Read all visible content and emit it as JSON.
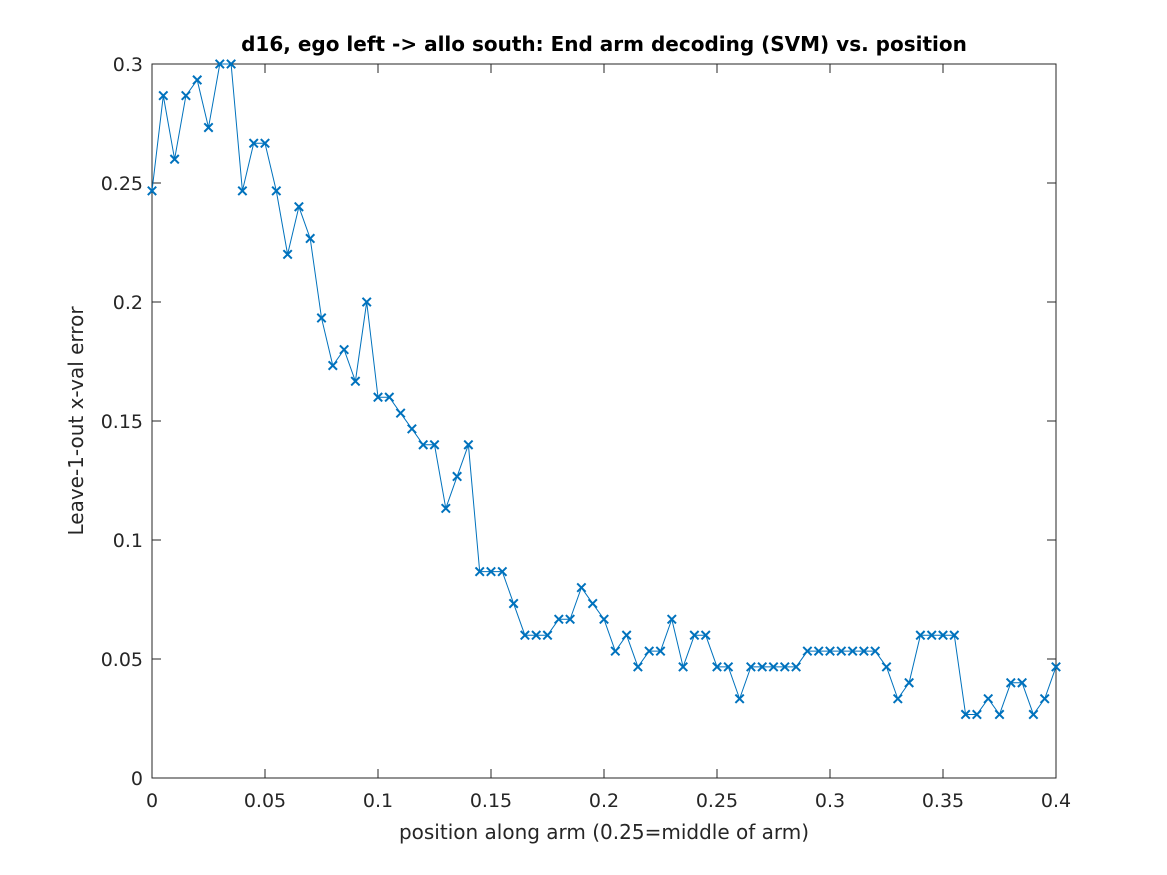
{
  "chart_data": {
    "type": "line",
    "title": "d16, ego left -> allo south: End arm decoding (SVM) vs. position",
    "xlabel": "position along arm (0.25=middle of arm)",
    "ylabel": "Leave-1-out x-val error",
    "xlim": [
      0,
      0.4
    ],
    "ylim": [
      0,
      0.3
    ],
    "xticks": [
      0,
      0.05,
      0.1,
      0.15,
      0.2,
      0.25,
      0.3,
      0.35,
      0.4
    ],
    "xtick_labels": [
      "0",
      "0.05",
      "0.1",
      "0.15",
      "0.2",
      "0.25",
      "0.3",
      "0.35",
      "0.4"
    ],
    "yticks": [
      0,
      0.05,
      0.1,
      0.15,
      0.2,
      0.25,
      0.3
    ],
    "ytick_labels": [
      "0",
      "0.05",
      "0.1",
      "0.15",
      "0.2",
      "0.25",
      "0.3"
    ],
    "grid": false,
    "legend": "none",
    "marker": "x",
    "series_color": "#0072bd",
    "x": [
      0,
      0.005,
      0.01,
      0.015,
      0.02,
      0.025,
      0.03,
      0.035,
      0.04,
      0.045,
      0.05,
      0.055,
      0.06,
      0.065,
      0.07,
      0.075,
      0.08,
      0.085,
      0.09,
      0.095,
      0.1,
      0.105,
      0.11,
      0.115,
      0.12,
      0.125,
      0.13,
      0.135,
      0.14,
      0.145,
      0.15,
      0.155,
      0.16,
      0.165,
      0.17,
      0.175,
      0.18,
      0.185,
      0.19,
      0.195,
      0.2,
      0.205,
      0.21,
      0.215,
      0.22,
      0.225,
      0.23,
      0.235,
      0.24,
      0.245,
      0.25,
      0.255,
      0.26,
      0.265,
      0.27,
      0.275,
      0.28,
      0.285,
      0.29,
      0.295,
      0.3,
      0.305,
      0.31,
      0.315,
      0.32,
      0.325,
      0.33,
      0.335,
      0.34,
      0.345,
      0.35,
      0.355,
      0.36,
      0.365,
      0.37,
      0.375,
      0.38,
      0.385,
      0.39,
      0.395,
      0.4
    ],
    "series": [
      {
        "values": [
          0.2467,
          0.2867,
          0.26,
          0.2867,
          0.2933,
          0.2733,
          0.3,
          0.3,
          0.2467,
          0.2667,
          0.2667,
          0.2467,
          0.22,
          0.24,
          0.2267,
          0.1933,
          0.1733,
          0.18,
          0.1667,
          0.2,
          0.16,
          0.16,
          0.1533,
          0.1467,
          0.14,
          0.14,
          0.1133,
          0.1267,
          0.14,
          0.0867,
          0.0867,
          0.0867,
          0.0733,
          0.06,
          0.06,
          0.06,
          0.0667,
          0.0667,
          0.08,
          0.0733,
          0.0667,
          0.0533,
          0.06,
          0.0467,
          0.0533,
          0.0533,
          0.0667,
          0.0467,
          0.06,
          0.06,
          0.0467,
          0.0467,
          0.0333,
          0.0467,
          0.0467,
          0.0467,
          0.0467,
          0.0467,
          0.0533,
          0.0533,
          0.0533,
          0.0533,
          0.0533,
          0.0533,
          0.0533,
          0.0467,
          0.0333,
          0.04,
          0.06,
          0.06,
          0.06,
          0.06,
          0.0267,
          0.0267,
          0.0333,
          0.0267,
          0.04,
          0.04,
          0.0267,
          0.0333,
          0.0467
        ]
      }
    ]
  }
}
